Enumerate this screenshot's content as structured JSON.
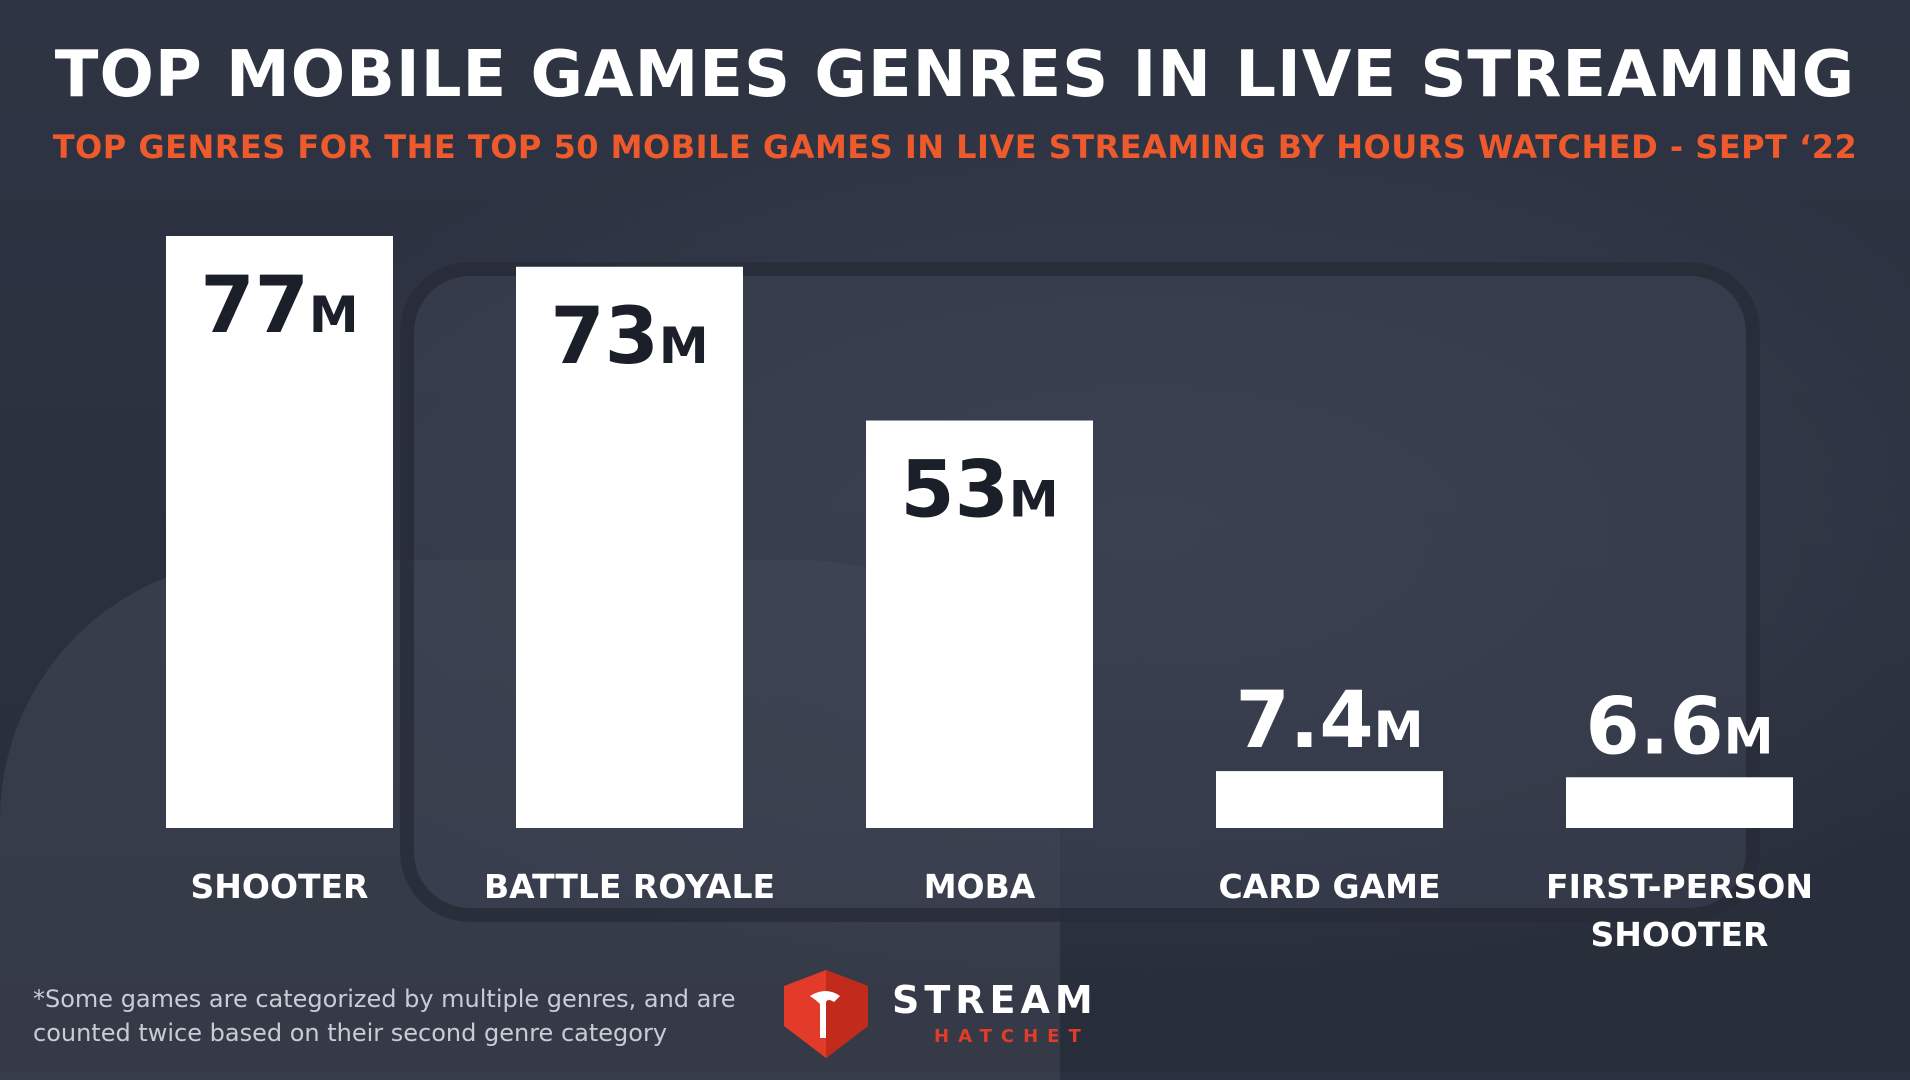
{
  "header": {
    "title": "TOP MOBILE GAMES GENRES IN LIVE STREAMING",
    "subtitle": "TOP GENRES FOR THE TOP 50 MOBILE GAMES IN LIVE STREAMING BY HOURS WATCHED - SEPT ‘22"
  },
  "chart_data": {
    "type": "bar",
    "title": "TOP MOBILE GAMES GENRES IN LIVE STREAMING",
    "subtitle": "TOP GENRES FOR THE TOP 50 MOBILE GAMES IN LIVE STREAMING BY HOURS WATCHED - SEPT ‘22",
    "categories": [
      [
        "SHOOTER"
      ],
      [
        "BATTLE ROYALE"
      ],
      [
        "MOBA"
      ],
      [
        "CARD GAME"
      ],
      [
        "FIRST-PERSON",
        "SHOOTER"
      ]
    ],
    "values": [
      77,
      73,
      53,
      7.4,
      6.6
    ],
    "value_labels": [
      "77",
      "73",
      "53",
      "7.4",
      "6.6"
    ],
    "unit_suffix": "M",
    "ylim": [
      0,
      77
    ],
    "grid": false,
    "bar_color": "#ffffff"
  },
  "footnote": {
    "line1": "*Some games are categorized by multiple genres, and are",
    "line2": "counted twice based on their second genre category"
  },
  "logo": {
    "word": "STREAM",
    "sub": "HATCHET",
    "icon": "hatchet-shield-icon",
    "accent": "#e23b2a"
  },
  "colors": {
    "accent": "#ef5a2c",
    "background": "#2b3140",
    "value_text": "#1a1f2a"
  }
}
